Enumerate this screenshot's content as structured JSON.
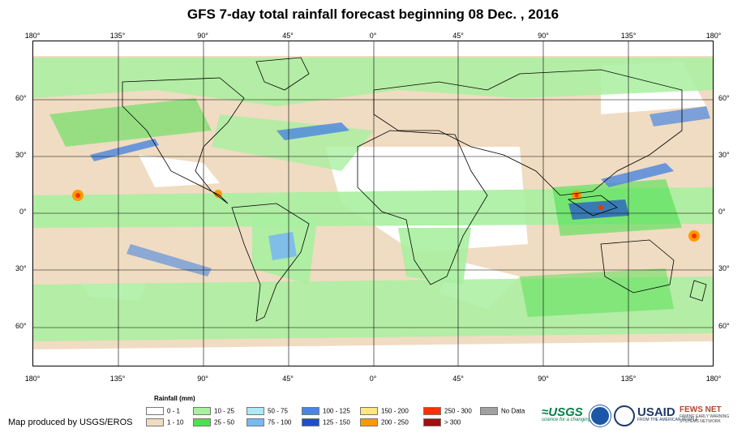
{
  "title": "GFS 7-day total rainfall forecast beginning 08 Dec. , 2016",
  "axes": {
    "longitude_labels": [
      "180°",
      "135°",
      "90°",
      "45°",
      "0°",
      "45°",
      "90°",
      "135°",
      "180°"
    ],
    "latitude_labels": [
      "60°",
      "30°",
      "0°",
      "30°",
      "60°"
    ]
  },
  "legend": {
    "title": "Rainfall (mm)",
    "items": [
      {
        "label": "0 - 1",
        "color": "#ffffff"
      },
      {
        "label": "1 - 10",
        "color": "#f0dcc2"
      },
      {
        "label": "10 - 25",
        "color": "#a9f0a0"
      },
      {
        "label": "25 - 50",
        "color": "#4fe050"
      },
      {
        "label": "50 - 75",
        "color": "#aee8f5"
      },
      {
        "label": "75 - 100",
        "color": "#7ab8f0"
      },
      {
        "label": "100 - 125",
        "color": "#4a86e0"
      },
      {
        "label": "125 - 150",
        "color": "#1e4ed0"
      },
      {
        "label": "150 - 200",
        "color": "#ffe680"
      },
      {
        "label": "200 - 250",
        "color": "#ff9a00"
      },
      {
        "label": "250 - 300",
        "color": "#ff3000"
      },
      {
        "label": "> 300",
        "color": "#a01010"
      },
      {
        "label": "No Data",
        "color": "#a0a0a0"
      }
    ]
  },
  "credit": "Map produced by USGS/EROS",
  "logos": {
    "usgs": "≈USGS",
    "usgs_tag": "science for a changing world",
    "usaid": "USAID",
    "usaid_tag": "FROM THE AMERICAN PEOPLE",
    "fews": "FEWS NET",
    "fews_tag": "FAMINE EARLY WARNING SYSTEMS NETWORK"
  }
}
